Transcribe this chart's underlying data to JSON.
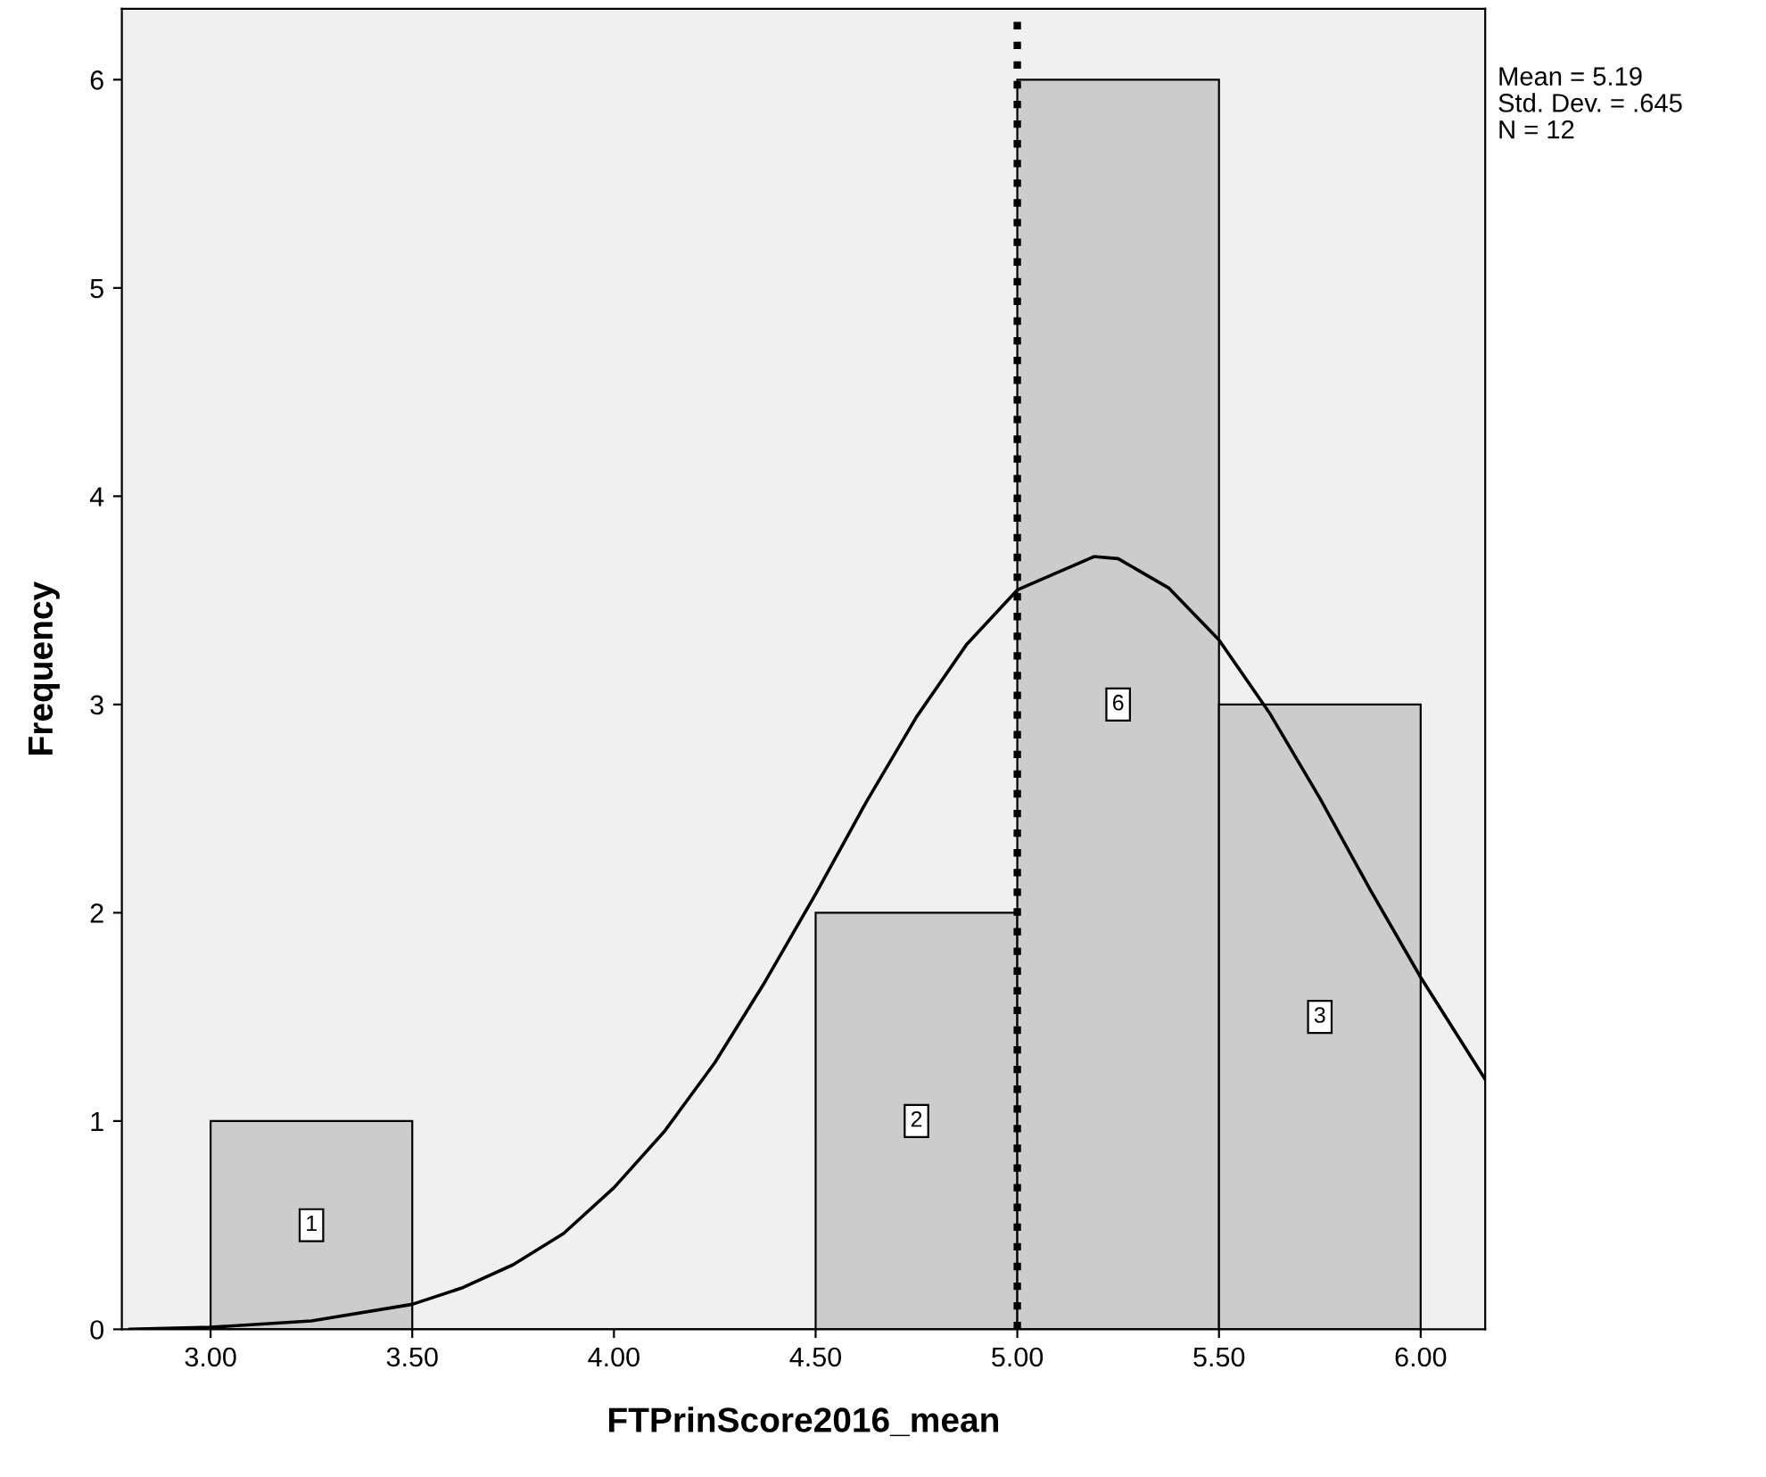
{
  "chart_data": {
    "type": "histogram",
    "xlabel": "FTPrinScore2016_mean",
    "ylabel": "Frequency",
    "series": [
      {
        "type": "histogram",
        "bins": [
          3.0,
          3.5,
          4.0,
          4.5,
          5.0,
          5.5,
          6.0
        ],
        "values": [
          1,
          0,
          0,
          2,
          6,
          3
        ],
        "color": "#cccccc",
        "value_labels": [
          "1",
          null,
          null,
          "2",
          "6",
          "3"
        ]
      },
      {
        "type": "line",
        "color": "#000000",
        "x": [
          2.8,
          3.0,
          3.25,
          3.5,
          3.625,
          3.75,
          3.875,
          4.0,
          4.125,
          4.25,
          4.375,
          4.5,
          4.625,
          4.75,
          4.875,
          5.0,
          5.19,
          5.25,
          5.375,
          5.5,
          5.625,
          5.75,
          5.875,
          6.0,
          6.16
        ],
        "values": [
          0.0,
          0.01,
          0.04,
          0.12,
          0.2,
          0.31,
          0.46,
          0.68,
          0.95,
          1.28,
          1.67,
          2.09,
          2.53,
          2.94,
          3.29,
          3.55,
          3.71,
          3.7,
          3.56,
          3.31,
          2.96,
          2.55,
          2.11,
          1.69,
          1.2
        ]
      }
    ],
    "xlim": [
      2.78,
      6.16
    ],
    "ylim": [
      0,
      6.34
    ],
    "xticks": [
      {
        "value": 3.0,
        "label": "3.00"
      },
      {
        "value": 3.5,
        "label": "3.50"
      },
      {
        "value": 4.0,
        "label": "4.00"
      },
      {
        "value": 4.5,
        "label": "4.50"
      },
      {
        "value": 5.0,
        "label": "5.00"
      },
      {
        "value": 5.5,
        "label": "5.50"
      },
      {
        "value": 6.0,
        "label": "6.00"
      }
    ],
    "yticks": [
      0,
      1,
      2,
      3,
      4,
      5,
      6
    ],
    "ref_lines": [
      {
        "axis": "x",
        "value": 5.0,
        "color": "#000000",
        "line_style": "dotted"
      }
    ],
    "annotations": [
      "Mean = 5.19",
      "Std. Dev. = .645",
      "N = 12"
    ],
    "grid": false
  }
}
